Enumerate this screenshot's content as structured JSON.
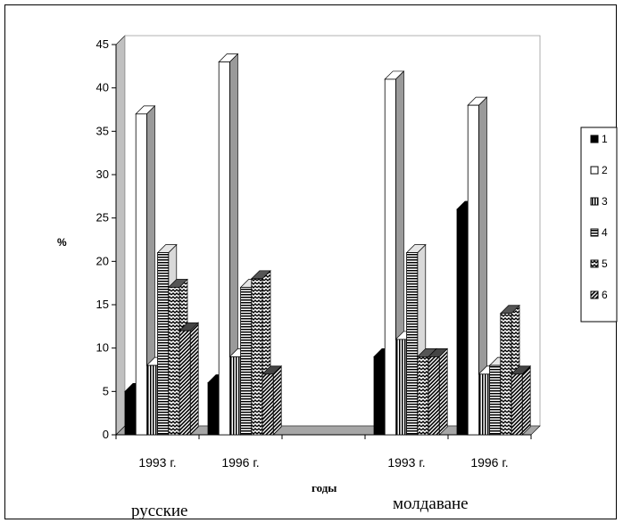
{
  "chart_data": {
    "type": "bar",
    "style": "3d-clustered",
    "ylabel": "%",
    "xlabel": "годы",
    "ylim": [
      0,
      45
    ],
    "yticks": [
      0,
      5,
      10,
      15,
      20,
      25,
      30,
      35,
      40,
      45
    ],
    "grid": false,
    "legend_position": "right",
    "categories": [
      "1993 г.",
      "1996 г.",
      "",
      "1993 г.",
      "1996 г."
    ],
    "category_groups": [
      {
        "label": "русские",
        "categories": [
          0,
          1
        ]
      },
      {
        "label": "молдаване",
        "categories": [
          3,
          4
        ]
      }
    ],
    "series": [
      {
        "name": "1",
        "values": [
          5,
          6,
          null,
          9,
          26
        ]
      },
      {
        "name": "2",
        "values": [
          37,
          43,
          null,
          41,
          38
        ]
      },
      {
        "name": "3",
        "values": [
          8,
          9,
          null,
          11,
          7
        ]
      },
      {
        "name": "4",
        "values": [
          21,
          17,
          null,
          21,
          8
        ]
      },
      {
        "name": "5",
        "values": [
          17,
          18,
          null,
          9,
          14
        ]
      },
      {
        "name": "6",
        "values": [
          12,
          7,
          null,
          9,
          7
        ]
      }
    ]
  },
  "colors": {
    "wall": "#c0c0c0",
    "floor": "#a6a6a6",
    "axis": "#000000"
  }
}
